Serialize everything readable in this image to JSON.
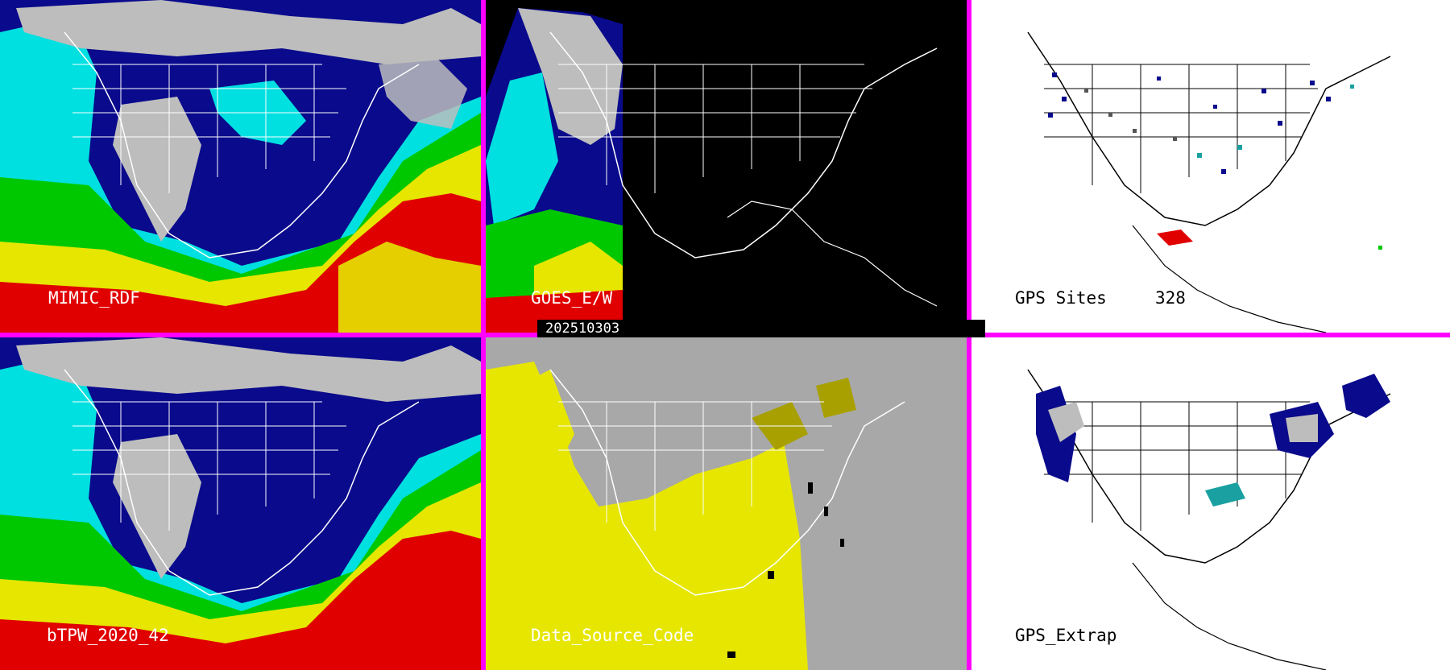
{
  "panels": [
    {
      "id": "mimic",
      "label": "MIMIC_RDF"
    },
    {
      "id": "goes",
      "label": "GOES_E/W"
    },
    {
      "id": "gps-sites",
      "label": "GPS Sites",
      "count": "328"
    },
    {
      "id": "btpw",
      "label": "bTPW_2020_42"
    },
    {
      "id": "dsc",
      "label": "Data_Source_Code"
    },
    {
      "id": "gps-extrap",
      "label": "GPS_Extrap"
    }
  ],
  "date_stamp": "202510303",
  "colors": {
    "border": "#ff00ff",
    "tpw_dry": "#0a0a8c",
    "tpw_mid": "#00e0e0",
    "tpw_moist": "#00c800",
    "tpw_wet": "#e6e600",
    "tpw_very_wet": "#e00000",
    "cloud_gray": "#b8b8b8",
    "dsc_background": "#a8a8a8",
    "dsc_yellow": "#e6e600",
    "dsc_olive": "#a8a000"
  }
}
